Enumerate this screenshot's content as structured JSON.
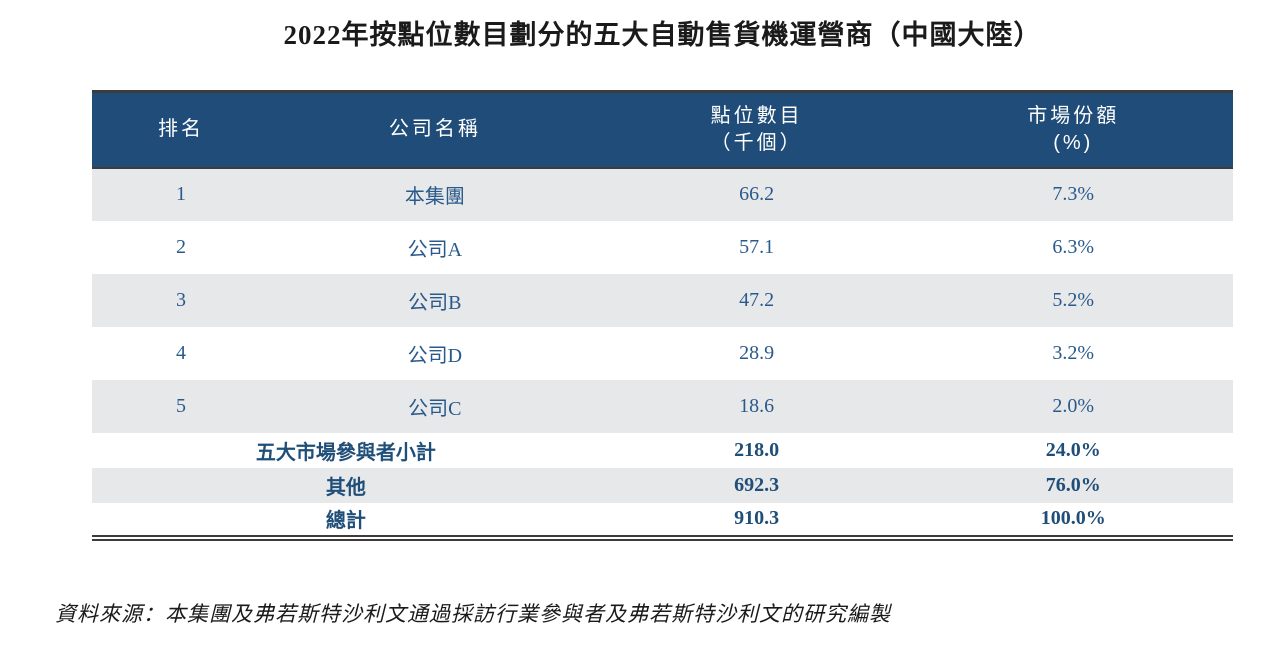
{
  "title": "2022年按點位數目劃分的五大自動售貨機運營商（中國大陸）",
  "colors": {
    "header_bg": "#1F4C78",
    "header_text": "#FFFFFF",
    "row_alt_bg": "#E7E8E9",
    "body_text": "#2A5A8C",
    "bold_text": "#1F4E79",
    "rule": "#3C3C3C",
    "title_text": "#1A1A1A"
  },
  "table": {
    "columns": {
      "rank": "排名",
      "company": "公司名稱",
      "points": "點位數目\n（千個）",
      "share": "市場份額\n(%)"
    },
    "rows": [
      {
        "rank": "1",
        "company": "本集團",
        "points": "66.2",
        "share": "7.3%"
      },
      {
        "rank": "2",
        "company": "公司A",
        "points": "57.1",
        "share": "6.3%"
      },
      {
        "rank": "3",
        "company": "公司B",
        "points": "47.2",
        "share": "5.2%"
      },
      {
        "rank": "4",
        "company": "公司D",
        "points": "28.9",
        "share": "3.2%"
      },
      {
        "rank": "5",
        "company": "公司C",
        "points": "18.6",
        "share": "2.0%"
      }
    ],
    "summary": [
      {
        "label": "五大市場參與者小計",
        "points": "218.0",
        "share": "24.0%"
      },
      {
        "label": "其他",
        "points": "692.3",
        "share": "76.0%"
      },
      {
        "label": "總計",
        "points": "910.3",
        "share": "100.0%"
      }
    ]
  },
  "source_note": "資料來源：本集團及弗若斯特沙利文通過採訪行業參與者及弗若斯特沙利文的研究編製"
}
